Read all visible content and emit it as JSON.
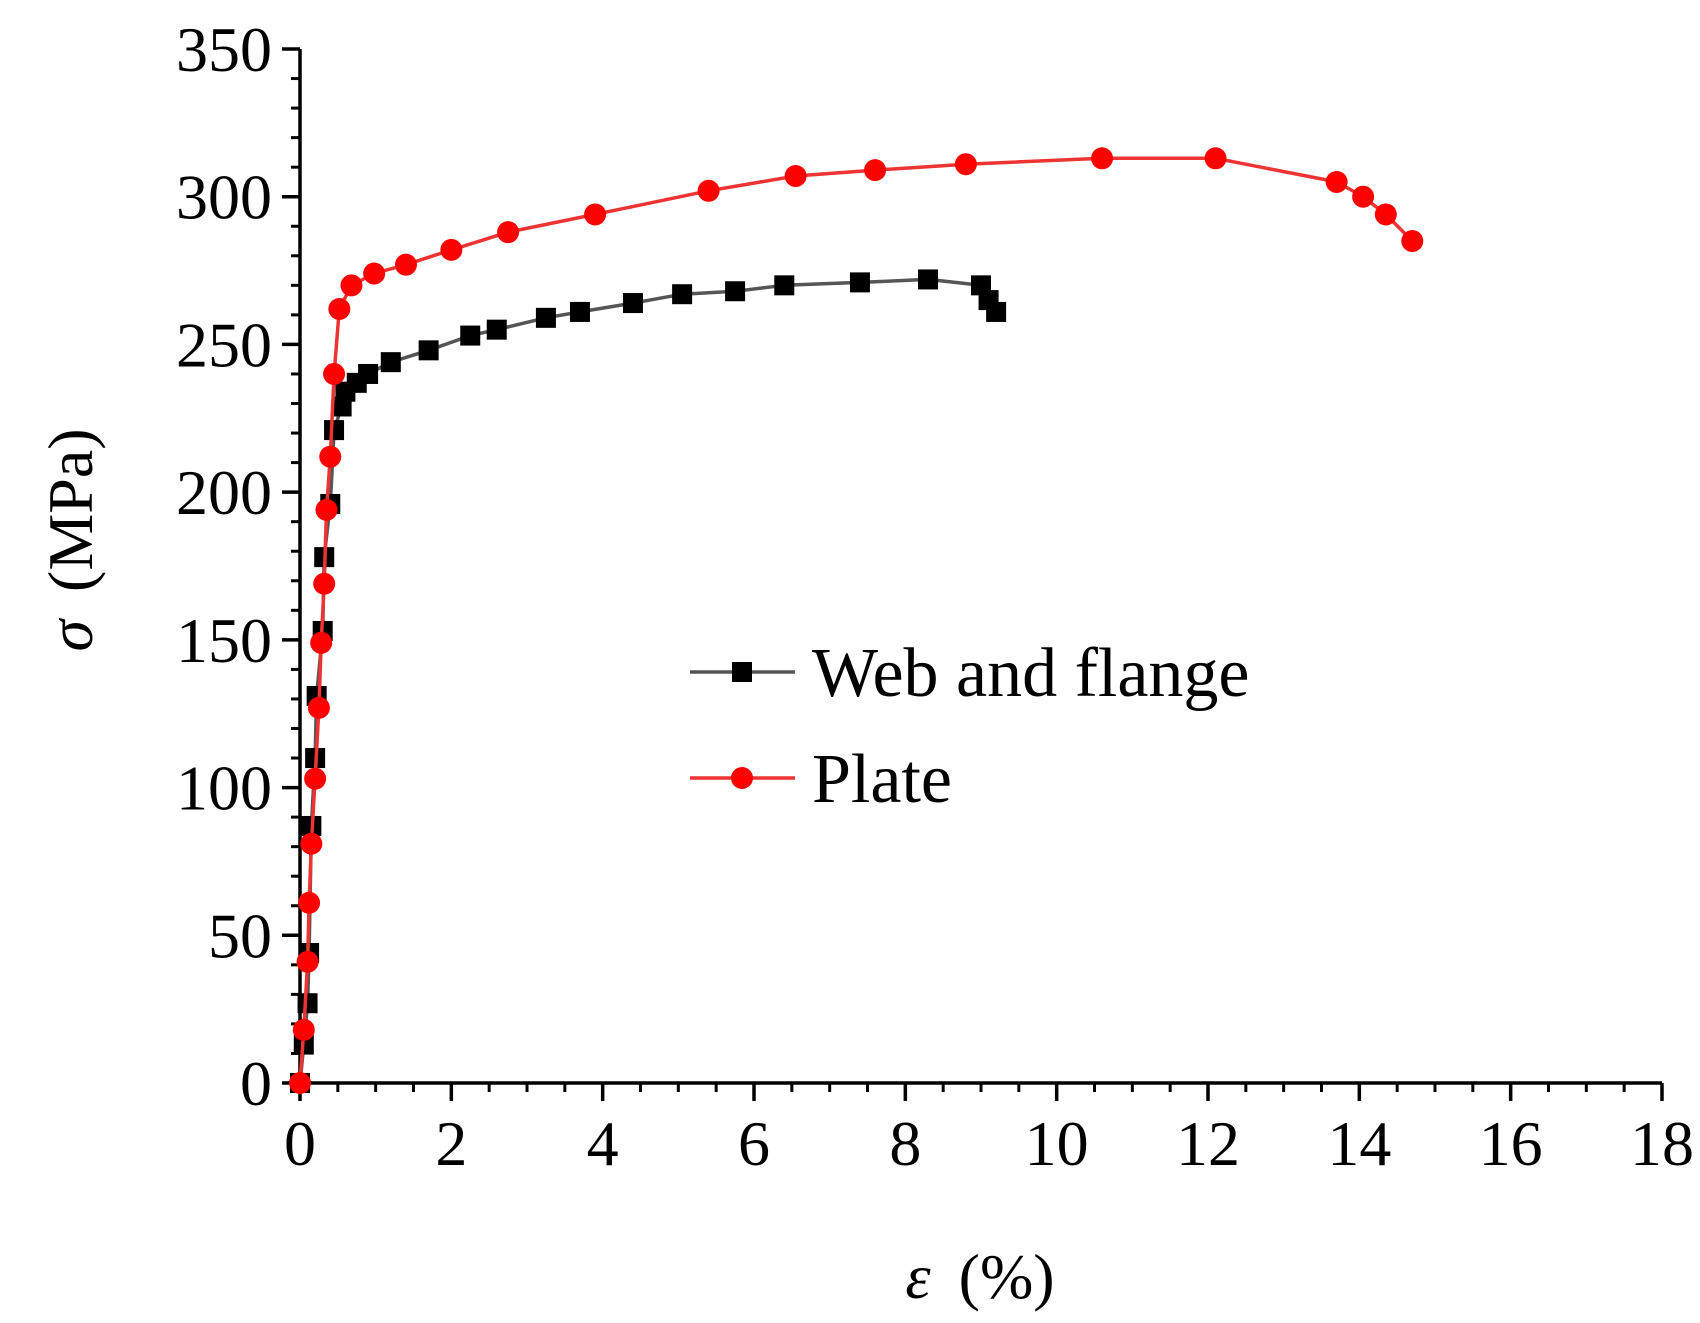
{
  "chart_data": {
    "type": "line",
    "xlabel_symbol": "ε",
    "xlabel_unit": "(%)",
    "ylabel_symbol": "σ",
    "ylabel_unit": "(MPa)",
    "xlim": [
      0,
      18
    ],
    "ylim": [
      0,
      350
    ],
    "xticks": [
      0,
      2,
      4,
      6,
      8,
      10,
      12,
      14,
      16,
      18
    ],
    "yticks": [
      0,
      50,
      100,
      150,
      200,
      250,
      300,
      350
    ],
    "xtick_labels": [
      "0",
      "2",
      "4",
      "6",
      "8",
      "10",
      "12",
      "14",
      "16",
      "18"
    ],
    "ytick_labels": [
      "0",
      "50",
      "100",
      "150",
      "200",
      "250",
      "300",
      "350"
    ],
    "legend_position": "center-right",
    "series": [
      {
        "name": "Web and flange",
        "color": "#000000",
        "line_color": "#555555",
        "marker": "square",
        "x": [
          0.0,
          0.05,
          0.1,
          0.12,
          0.15,
          0.2,
          0.22,
          0.3,
          0.32,
          0.4,
          0.45,
          0.55,
          0.6,
          0.75,
          0.9,
          1.2,
          1.7,
          2.25,
          2.6,
          3.25,
          3.7,
          4.4,
          5.05,
          5.75,
          6.4,
          7.4,
          8.3,
          9.0,
          9.1,
          9.2
        ],
        "y": [
          0,
          13,
          27,
          44,
          87,
          110,
          131,
          153,
          178,
          196,
          221,
          229,
          234,
          237,
          240,
          244,
          248,
          253,
          255,
          259,
          261,
          264,
          267,
          268,
          270,
          271,
          272,
          270,
          265,
          261
        ]
      },
      {
        "name": "Plate",
        "color": "#ff0000",
        "line_color": "#ee3333",
        "marker": "circle",
        "x": [
          0.0,
          0.05,
          0.1,
          0.12,
          0.15,
          0.2,
          0.25,
          0.28,
          0.32,
          0.35,
          0.4,
          0.45,
          0.52,
          0.68,
          0.98,
          1.4,
          2.0,
          2.75,
          3.9,
          5.4,
          6.55,
          7.6,
          8.8,
          10.6,
          12.1,
          13.7,
          14.05,
          14.35,
          14.7
        ],
        "y": [
          0,
          18,
          41,
          61,
          81,
          103,
          127,
          149,
          169,
          194,
          212,
          240,
          262,
          270,
          274,
          277,
          282,
          288,
          294,
          302,
          307,
          309,
          311,
          313,
          313,
          305,
          300,
          294,
          285
        ]
      }
    ]
  }
}
